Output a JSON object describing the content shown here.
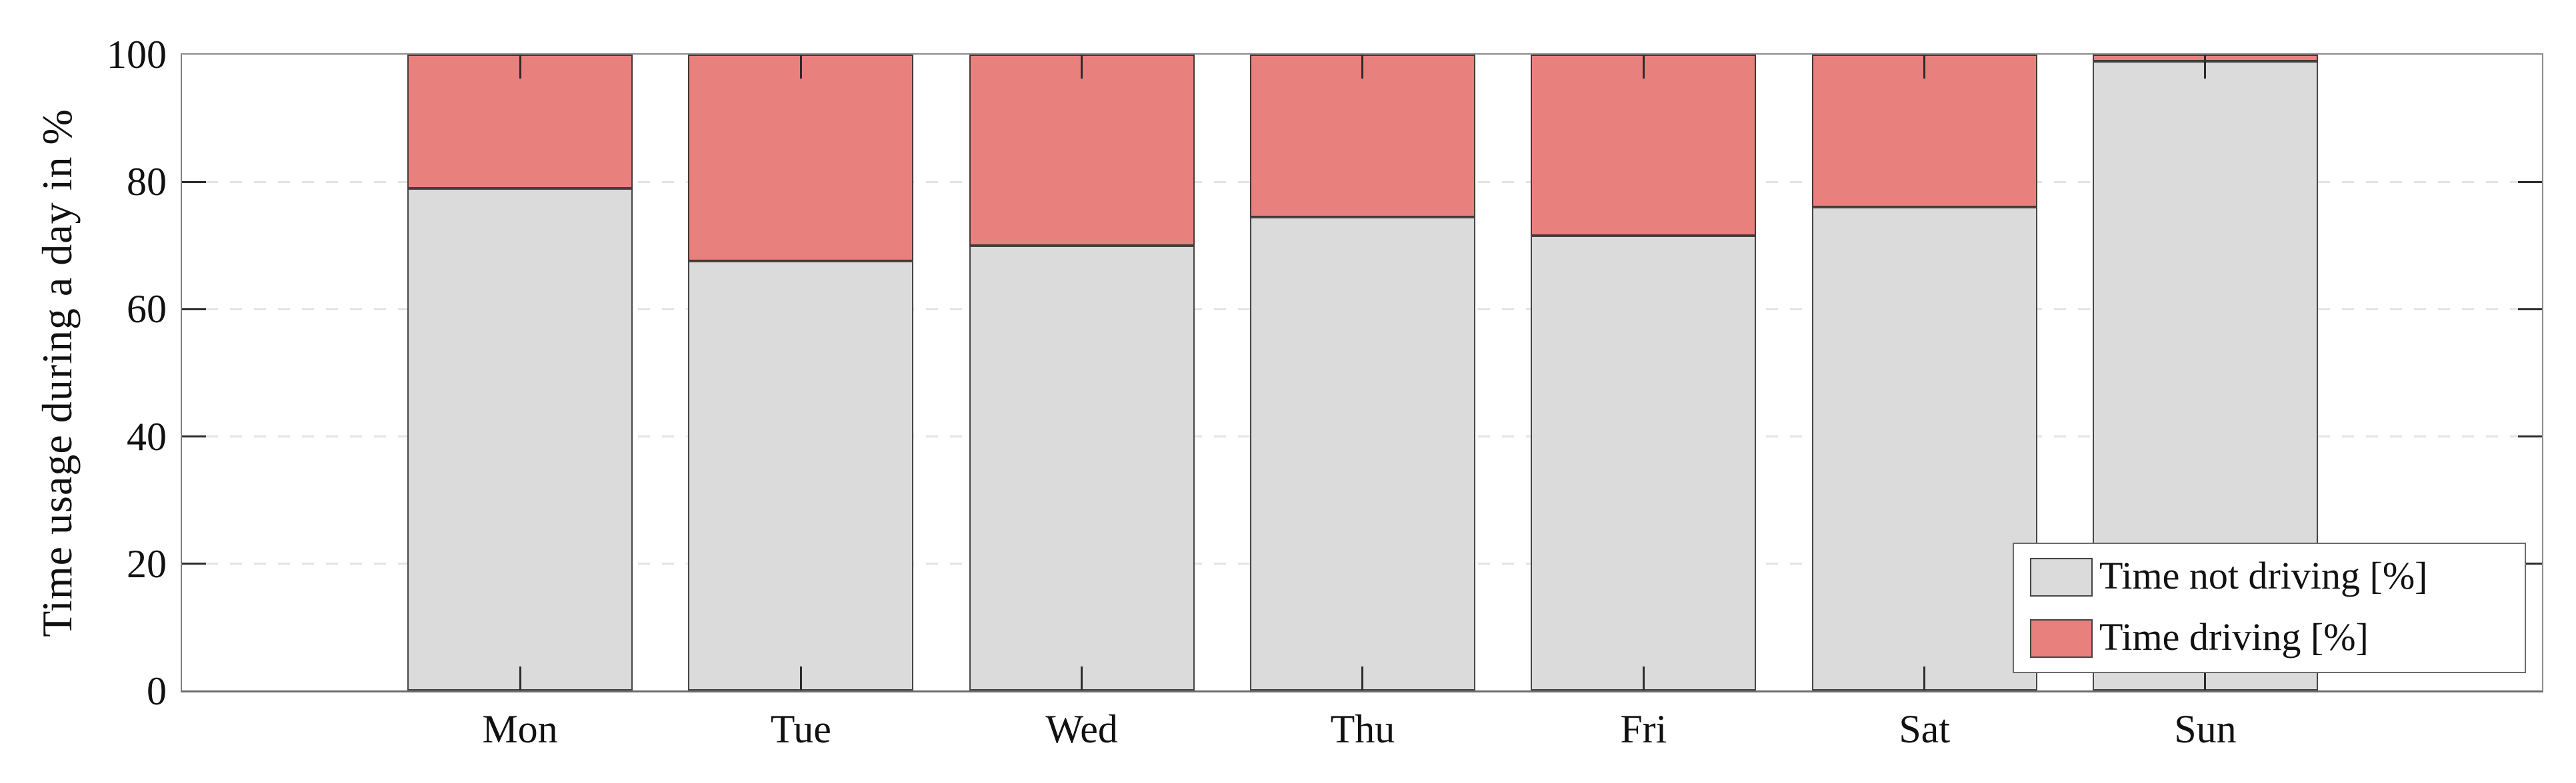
{
  "figure": {
    "background": "#FFFFFF",
    "kind": "stacked bar chart of driving vs non-driving time per weekday"
  },
  "chart_data": {
    "type": "bar",
    "stacked": true,
    "title": "",
    "xlabel": "",
    "ylabel": "Time usage during a day in %",
    "categories": [
      "Mon",
      "Tue",
      "Wed",
      "Thu",
      "Fri",
      "Sat",
      "Sun"
    ],
    "series": [
      {
        "name": "Time not driving [%]",
        "color": "#DBDBDB",
        "values": [
          79,
          67.5,
          70,
          74.5,
          71.5,
          76,
          99
        ]
      },
      {
        "name": "Time driving [%]",
        "color": "#E8817E",
        "values": [
          21,
          32.5,
          30,
          25.5,
          28.5,
          24,
          1
        ]
      }
    ],
    "ylim": [
      0,
      100
    ],
    "yticks": [
      0,
      20,
      40,
      60,
      80,
      100
    ],
    "gridline_values": [
      20,
      40,
      60,
      80
    ],
    "grid_style": "dashed-horizontal",
    "legend_position": "bottom-right",
    "style_colors": {
      "grid": "#E4E4E4",
      "axis_frame": "#8C8C8C",
      "tick": "#2B2B2B",
      "bar_border": "#2A2A2A",
      "legend_border": "#6B6B6B",
      "legend_background": "#FFFFFF",
      "text": "#111111"
    }
  }
}
